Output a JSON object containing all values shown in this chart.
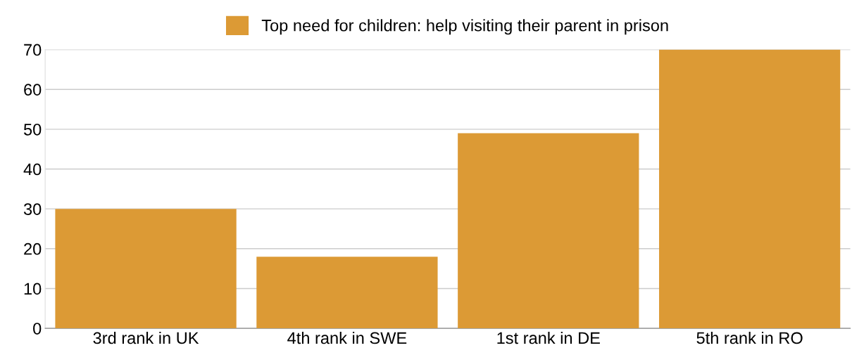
{
  "chart_data": {
    "type": "bar",
    "categories": [
      "3rd rank in UK",
      "4th rank in SWE",
      "1st rank in DE",
      "5th rank in RO"
    ],
    "series": [
      {
        "name": "Top need for children: help visiting their parent in prison",
        "color": "#dc9a35",
        "values": [
          30,
          18,
          49,
          70
        ]
      }
    ],
    "ylim": [
      0,
      70
    ],
    "yticks": [
      0,
      10,
      20,
      30,
      40,
      50,
      60,
      70
    ],
    "grid": "y",
    "legend": "top"
  }
}
